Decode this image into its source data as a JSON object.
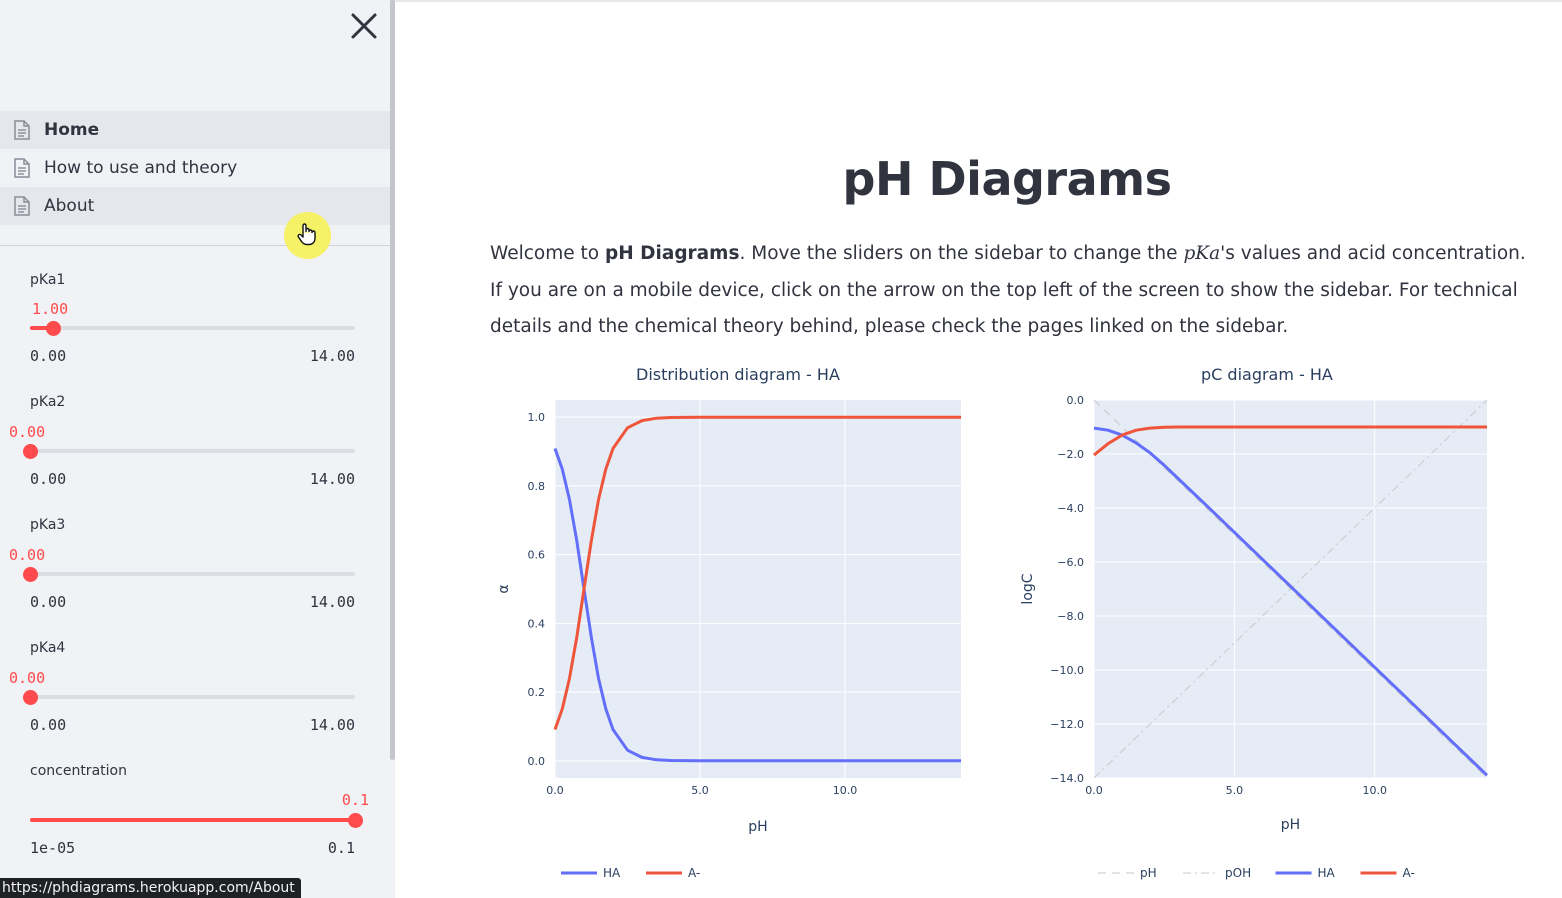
{
  "sidebar": {
    "close_label": "close",
    "nav": [
      {
        "label": "Home",
        "active": true
      },
      {
        "label": "How to use and theory",
        "active": false
      },
      {
        "label": "About",
        "active": false
      }
    ],
    "sliders": [
      {
        "label": "pKa1",
        "value": "1.00",
        "min": "0.00",
        "max": "14.00",
        "fraction": 0.0714
      },
      {
        "label": "pKa2",
        "value": "0.00",
        "min": "0.00",
        "max": "14.00",
        "fraction": 0
      },
      {
        "label": "pKa3",
        "value": "0.00",
        "min": "0.00",
        "max": "14.00",
        "fraction": 0
      },
      {
        "label": "pKa4",
        "value": "0.00",
        "min": "0.00",
        "max": "14.00",
        "fraction": 0
      },
      {
        "label": "concentration",
        "value": "0.1",
        "min": "1e-05",
        "max": "0.1",
        "fraction": 1
      }
    ],
    "status_url": "https://phdiagrams.herokuapp.com/About"
  },
  "main": {
    "title": "pH Diagrams",
    "intro": {
      "p1": "Welcome to ",
      "bold": "pH Diagrams",
      "p2": ". Move the sliders on the sidebar to change the ",
      "math": "pKa",
      "p3": "'s values and acid concentration. If you are on a mobile device, click on the arrow on the top left of the screen to show the sidebar. For technical details and the chemical theory behind, please check the pages linked on the sidebar."
    }
  },
  "colors": {
    "accent": "#ff4b4b",
    "series_blue": "#636efa",
    "series_red": "#ef553b",
    "plot_bg": "#e5ecf6",
    "text": "#31333f"
  },
  "chart_data": [
    {
      "type": "line",
      "title": "Distribution diagram - HA",
      "xlabel": "pH",
      "ylabel": "α",
      "xlim": [
        0,
        14
      ],
      "ylim": [
        -0.05,
        1.05
      ],
      "xticks": [
        "0.0",
        "5.0",
        "10.0"
      ],
      "yticks": [
        "0.0",
        "0.2",
        "0.4",
        "0.6",
        "0.8",
        "1.0"
      ],
      "legend_position": "bottom",
      "series": [
        {
          "name": "HA",
          "color": "#636efa",
          "x": [
            0,
            0.25,
            0.5,
            0.75,
            1.0,
            1.25,
            1.5,
            1.75,
            2.0,
            2.5,
            3.0,
            3.5,
            4.0,
            5.0,
            7.0,
            10.0,
            14.0
          ],
          "y": [
            0.909,
            0.849,
            0.76,
            0.64,
            0.5,
            0.36,
            0.24,
            0.151,
            0.091,
            0.031,
            0.01,
            0.003,
            0.001,
            0.0,
            0.0,
            0.0,
            0.0
          ]
        },
        {
          "name": "A-",
          "color": "#ef553b",
          "x": [
            0,
            0.25,
            0.5,
            0.75,
            1.0,
            1.25,
            1.5,
            1.75,
            2.0,
            2.5,
            3.0,
            3.5,
            4.0,
            5.0,
            7.0,
            10.0,
            14.0
          ],
          "y": [
            0.091,
            0.151,
            0.24,
            0.36,
            0.5,
            0.64,
            0.76,
            0.849,
            0.909,
            0.969,
            0.99,
            0.997,
            0.999,
            1.0,
            1.0,
            1.0,
            1.0
          ]
        }
      ]
    },
    {
      "type": "line",
      "title": "pC diagram - HA",
      "xlabel": "pH",
      "ylabel": "logC",
      "xlim": [
        0,
        14
      ],
      "ylim": [
        -14,
        0
      ],
      "xticks": [
        "0.0",
        "5.0",
        "10.0"
      ],
      "yticks": [
        "0.0",
        "−2.0",
        "−4.0",
        "−6.0",
        "−8.0",
        "−10.0",
        "−12.0",
        "−14.0"
      ],
      "legend_position": "bottom",
      "series": [
        {
          "name": "pH",
          "color": "#c8c8c8",
          "dash": "dash",
          "x": [
            0,
            14
          ],
          "y": [
            0,
            -14
          ]
        },
        {
          "name": "pOH",
          "color": "#c8c8c8",
          "dash": "dashdot",
          "x": [
            0,
            14
          ],
          "y": [
            -14,
            0
          ]
        },
        {
          "name": "HA",
          "color": "#636efa",
          "x": [
            0,
            0.5,
            1.0,
            1.5,
            2.0,
            2.5,
            3.0,
            4.0,
            6.0,
            8.0,
            10.0,
            12.0,
            14.0
          ],
          "y": [
            -1.04,
            -1.12,
            -1.3,
            -1.59,
            -1.96,
            -2.42,
            -2.91,
            -3.9,
            -5.9,
            -7.9,
            -9.9,
            -11.9,
            -13.9
          ]
        },
        {
          "name": "A-",
          "color": "#ef553b",
          "x": [
            0,
            0.5,
            1.0,
            1.5,
            2.0,
            2.5,
            3.0,
            4.0,
            6.0,
            8.0,
            10.0,
            12.0,
            14.0
          ],
          "y": [
            -2.04,
            -1.62,
            -1.3,
            -1.12,
            -1.04,
            -1.01,
            -1.0,
            -1.0,
            -1.0,
            -1.0,
            -1.0,
            -1.0,
            -1.0
          ]
        }
      ]
    }
  ]
}
